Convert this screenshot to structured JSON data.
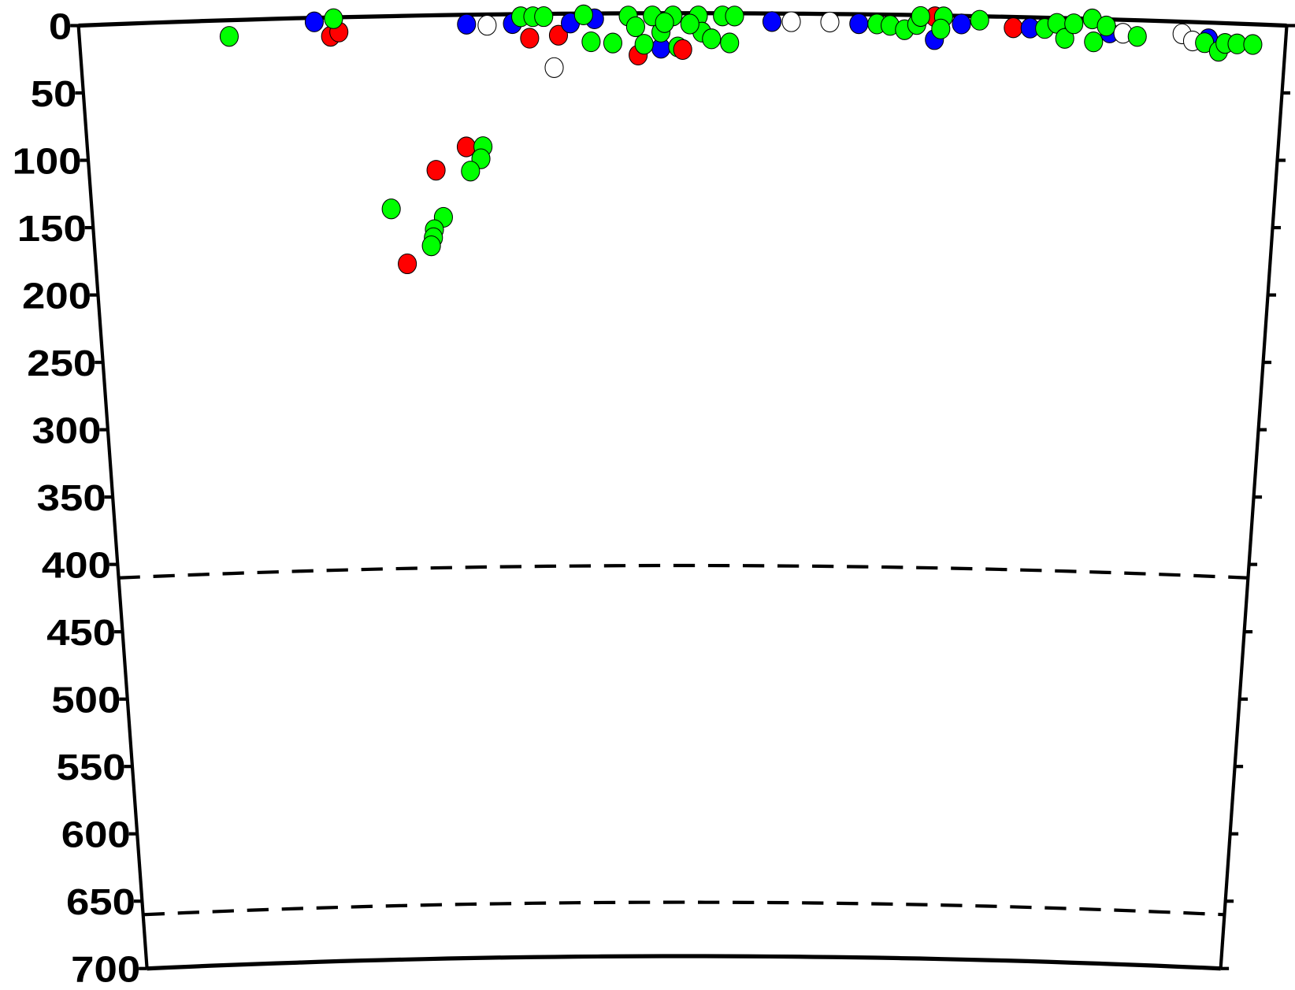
{
  "chart_data": {
    "type": "scatter",
    "title": "",
    "xlabel": "",
    "ylabel": "",
    "ylim": [
      0,
      700
    ],
    "xlim": [
      0,
      100
    ],
    "y_inverted": true,
    "grid": false,
    "y_ticks": [
      "0",
      "50",
      "100",
      "150",
      "200",
      "250",
      "300",
      "350",
      "400",
      "450",
      "500",
      "550",
      "600",
      "650",
      "700"
    ],
    "y_tick_values": [
      0,
      50,
      100,
      150,
      200,
      250,
      300,
      350,
      400,
      450,
      500,
      550,
      600,
      650,
      700
    ],
    "reference_lines": [
      {
        "depth": 410,
        "style": "dashed"
      },
      {
        "depth": 660,
        "style": "dashed"
      }
    ],
    "colors": {
      "b": "#0000ff",
      "r": "#ff0000",
      "g": "#00ff00",
      "w": "#ffffff",
      "outline": "#000000"
    },
    "points": [
      [
        12.4,
        12,
        "g"
      ],
      [
        19.5,
        3,
        "b"
      ],
      [
        20.8,
        14,
        "r"
      ],
      [
        21.5,
        11,
        "r"
      ],
      [
        21.1,
        1,
        "g"
      ],
      [
        31.8,
        98,
        "r"
      ],
      [
        33.2,
        98,
        "g"
      ],
      [
        33.0,
        107,
        "g"
      ],
      [
        32.1,
        116,
        "g"
      ],
      [
        29.2,
        115,
        "r"
      ],
      [
        25.3,
        143,
        "g"
      ],
      [
        29.7,
        150,
        "g"
      ],
      [
        28.9,
        159,
        "g"
      ],
      [
        28.8,
        165,
        "g"
      ],
      [
        28.6,
        171,
        "g"
      ],
      [
        26.5,
        184,
        "r"
      ],
      [
        32.1,
        7,
        "b"
      ],
      [
        33.8,
        8,
        "w"
      ],
      [
        35.9,
        7,
        "b"
      ],
      [
        36.6,
        2,
        "g"
      ],
      [
        37.6,
        2,
        "g"
      ],
      [
        38.5,
        2,
        "g"
      ],
      [
        37.3,
        18,
        "r"
      ],
      [
        39.7,
        16,
        "r"
      ],
      [
        39.3,
        40,
        "w"
      ],
      [
        40.7,
        7,
        "b"
      ],
      [
        42.7,
        4,
        "b"
      ],
      [
        41.8,
        1,
        "g"
      ],
      [
        42.4,
        21,
        "g"
      ],
      [
        44.2,
        22,
        "g"
      ],
      [
        46.3,
        31,
        "r"
      ],
      [
        48.2,
        26,
        "b"
      ],
      [
        46.8,
        23,
        "g"
      ],
      [
        48.2,
        14,
        "g"
      ],
      [
        49.6,
        25,
        "g"
      ],
      [
        50.0,
        27,
        "r"
      ],
      [
        45.5,
        2,
        "g"
      ],
      [
        47.5,
        2,
        "g"
      ],
      [
        49.2,
        2,
        "g"
      ],
      [
        51.3,
        2,
        "g"
      ],
      [
        51.6,
        14,
        "g"
      ],
      [
        52.4,
        19,
        "g"
      ],
      [
        53.9,
        22,
        "g"
      ],
      [
        53.3,
        2,
        "g"
      ],
      [
        54.3,
        2,
        "g"
      ],
      [
        46.1,
        10,
        "g"
      ],
      [
        48.5,
        7,
        "g"
      ],
      [
        50.6,
        8,
        "g"
      ],
      [
        57.4,
        6,
        "b"
      ],
      [
        59.0,
        6,
        "w"
      ],
      [
        62.2,
        6,
        "w"
      ],
      [
        64.6,
        7,
        "b"
      ],
      [
        66.1,
        7,
        "g"
      ],
      [
        67.2,
        8,
        "g"
      ],
      [
        68.4,
        11,
        "g"
      ],
      [
        69.4,
        7,
        "g"
      ],
      [
        70.9,
        1,
        "r"
      ],
      [
        70.9,
        18,
        "b"
      ],
      [
        69.7,
        1,
        "g"
      ],
      [
        71.6,
        1,
        "g"
      ],
      [
        71.4,
        10,
        "g"
      ],
      [
        73.1,
        6,
        "b"
      ],
      [
        74.6,
        3,
        "g"
      ],
      [
        77.4,
        8,
        "r"
      ],
      [
        78.8,
        8,
        "b"
      ],
      [
        80.0,
        8,
        "g"
      ],
      [
        81.0,
        4,
        "g"
      ],
      [
        81.7,
        15,
        "g"
      ],
      [
        82.4,
        4,
        "g"
      ],
      [
        83.9,
        0,
        "g"
      ],
      [
        84.1,
        17,
        "g"
      ],
      [
        85.4,
        10,
        "b"
      ],
      [
        85.1,
        5,
        "g"
      ],
      [
        86.5,
        10,
        "w"
      ],
      [
        87.7,
        12,
        "g"
      ],
      [
        91.4,
        9,
        "w"
      ],
      [
        92.3,
        14,
        "w"
      ],
      [
        93.6,
        12,
        "b"
      ],
      [
        93.3,
        15,
        "g"
      ],
      [
        94.5,
        21,
        "g"
      ],
      [
        95.0,
        15,
        "g"
      ],
      [
        96.0,
        15,
        "g"
      ],
      [
        97.3,
        15,
        "g"
      ]
    ]
  }
}
